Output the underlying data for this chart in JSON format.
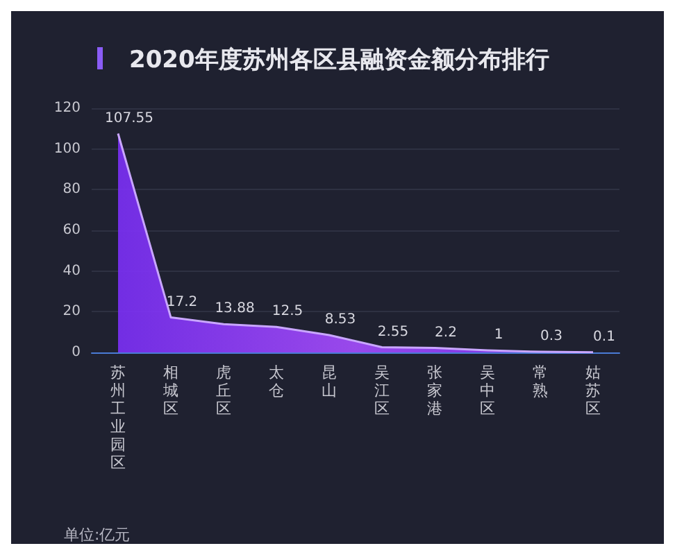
{
  "chart_data": {
    "type": "area",
    "title": "2020年度苏州各区县融资金额分布排行",
    "categories": [
      "苏州工业园区",
      "相城区",
      "虎丘区",
      "太仓",
      "昆山",
      "吴江区",
      "张家港",
      "吴中区",
      "常熟",
      "姑苏区"
    ],
    "series": [
      {
        "color": "#7b2ff7",
        "values": [
          107.55,
          17.2,
          13.88,
          12.5,
          8.53,
          2.55,
          2.2,
          1,
          0.3,
          0.1
        ]
      }
    ],
    "ylim": [
      0,
      120
    ],
    "yticks": [
      0,
      20,
      40,
      60,
      80,
      100,
      120
    ],
    "grid": "y",
    "data_labels": true,
    "marker": "none",
    "annotations": [
      "单位:亿元"
    ]
  }
}
